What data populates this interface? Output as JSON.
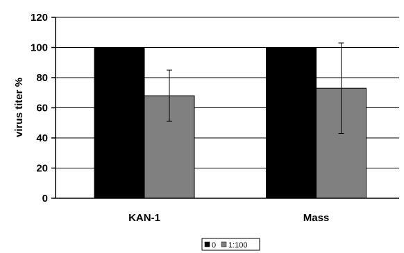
{
  "chart_data": {
    "type": "bar",
    "categories": [
      "KAN-1",
      "Mass"
    ],
    "series": [
      {
        "name": "0",
        "values": [
          100,
          100
        ],
        "error": [
          null,
          null
        ],
        "color": "#000000"
      },
      {
        "name": "1:100",
        "values": [
          68,
          73
        ],
        "error": [
          17,
          30
        ],
        "color": "#808080"
      }
    ],
    "xlabel": "",
    "ylabel": "virus titer %",
    "ylim": [
      0,
      120
    ],
    "yticks": [
      0,
      20,
      40,
      60,
      80,
      100,
      120
    ],
    "grid": true,
    "legend_position": "bottom-center"
  }
}
